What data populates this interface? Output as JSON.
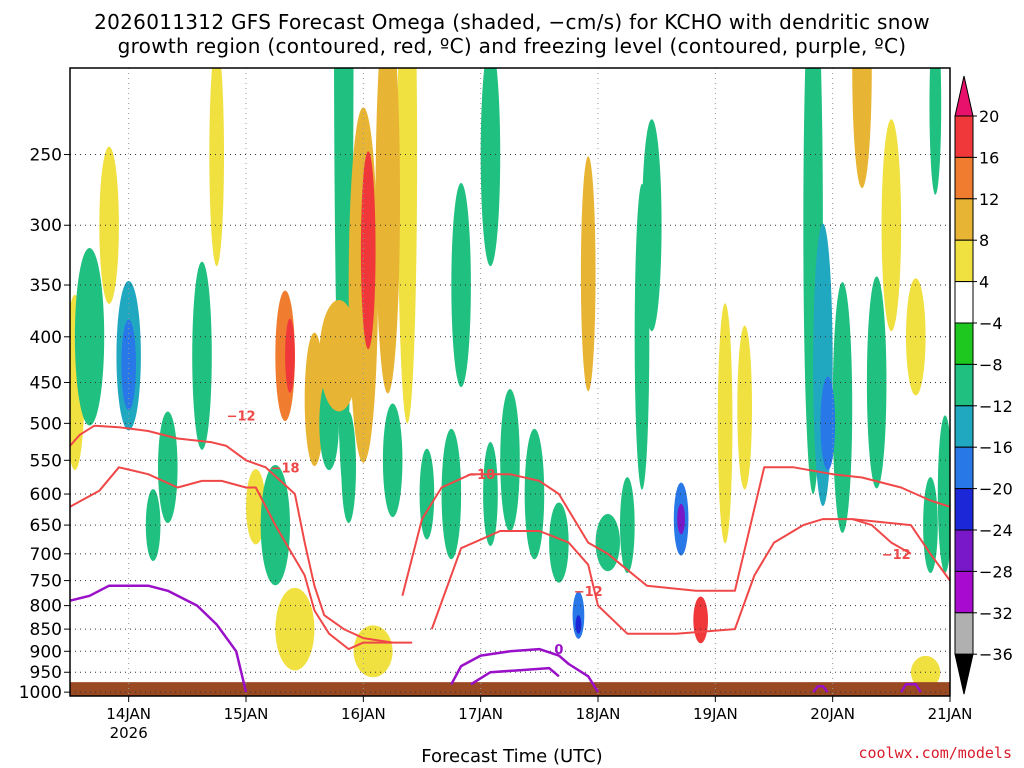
{
  "header": {
    "title_line1": "2026011312 GFS Forecast Omega (shaded, −cm/s) for KCHO with dendritic snow",
    "title_line2": "growth region (contoured, red, ºC) and freezing level (contoured, purple, ºC)"
  },
  "footer": {
    "xlabel": "Forecast Time (UTC)",
    "credit": "coolwx.com/models"
  },
  "chart_data": {
    "type": "heatmap",
    "x_ticks": [
      {
        "label": "14JAN",
        "sub": "2026",
        "hour": 12
      },
      {
        "label": "15JAN",
        "sub": "",
        "hour": 36
      },
      {
        "label": "16JAN",
        "sub": "",
        "hour": 60
      },
      {
        "label": "17JAN",
        "sub": "",
        "hour": 84
      },
      {
        "label": "18JAN",
        "sub": "",
        "hour": 108
      },
      {
        "label": "19JAN",
        "sub": "",
        "hour": 132
      },
      {
        "label": "20JAN",
        "sub": "",
        "hour": 156
      },
      {
        "label": "21JAN",
        "sub": "",
        "hour": 180
      }
    ],
    "xlim_hours": [
      0,
      180
    ],
    "y_ticks": [
      250,
      300,
      350,
      400,
      450,
      500,
      550,
      600,
      650,
      700,
      750,
      800,
      850,
      900,
      950,
      1000
    ],
    "ylim_hpa": [
      200,
      1010
    ],
    "grid": true,
    "colorbar": {
      "labels": [
        "20",
        "16",
        "12",
        "8",
        "4",
        "−4",
        "−8",
        "−12",
        "−16",
        "−20",
        "−24",
        "−28",
        "−32",
        "−36"
      ],
      "colors": [
        "#e8126c",
        "#f0383a",
        "#f07c30",
        "#e8b433",
        "#f0e040",
        "#ffffff",
        "#1ec81e",
        "#20c080",
        "#20a8c0",
        "#2878e8",
        "#1c28d8",
        "#7818c8",
        "#a80ad0",
        "#b0b0b0",
        "#000000"
      ]
    },
    "omega_features": [
      {
        "t": 4,
        "p": 400,
        "dt": 3,
        "dp": 90,
        "v": -10
      },
      {
        "t": 12,
        "p": 420,
        "dt": 2.5,
        "dp": 80,
        "v": -14
      },
      {
        "t": 12,
        "p": 430,
        "dt": 1.5,
        "dp": 50,
        "v": -18
      },
      {
        "t": 8,
        "p": 300,
        "dt": 2,
        "dp": 60,
        "v": 6
      },
      {
        "t": 1,
        "p": 450,
        "dt": 2,
        "dp": 100,
        "v": 6
      },
      {
        "t": 17,
        "p": 650,
        "dt": 1.5,
        "dp": 60,
        "v": -8
      },
      {
        "t": 20,
        "p": 560,
        "dt": 2,
        "dp": 80,
        "v": -8
      },
      {
        "t": 27,
        "p": 420,
        "dt": 2,
        "dp": 100,
        "v": -8
      },
      {
        "t": 30,
        "p": 250,
        "dt": 1.5,
        "dp": 70,
        "v": 5
      },
      {
        "t": 38,
        "p": 620,
        "dt": 2,
        "dp": 60,
        "v": 5
      },
      {
        "t": 42,
        "p": 650,
        "dt": 3,
        "dp": 100,
        "v": -10
      },
      {
        "t": 44,
        "p": 420,
        "dt": 2,
        "dp": 70,
        "v": 12
      },
      {
        "t": 45,
        "p": 420,
        "dt": 1,
        "dp": 40,
        "v": 17
      },
      {
        "t": 46,
        "p": 850,
        "dt": 4,
        "dp": 90,
        "v": 6
      },
      {
        "t": 50,
        "p": 470,
        "dt": 2,
        "dp": 80,
        "v": 8
      },
      {
        "t": 53,
        "p": 500,
        "dt": 2,
        "dp": 60,
        "v": -8
      },
      {
        "t": 55,
        "p": 420,
        "dt": 4,
        "dp": 60,
        "v": 9
      },
      {
        "t": 56,
        "p": 180,
        "dt": 2,
        "dp": 150,
        "v": -8
      },
      {
        "t": 60,
        "p": 350,
        "dt": 3,
        "dp": 150,
        "v": 10
      },
      {
        "t": 61,
        "p": 320,
        "dt": 1.5,
        "dp": 80,
        "v": 17
      },
      {
        "t": 57,
        "p": 560,
        "dt": 1.5,
        "dp": 80,
        "v": -8
      },
      {
        "t": 62,
        "p": 900,
        "dt": 4,
        "dp": 60,
        "v": 6
      },
      {
        "t": 65,
        "p": 280,
        "dt": 2.5,
        "dp": 130,
        "v": 9
      },
      {
        "t": 66,
        "p": 550,
        "dt": 2,
        "dp": 80,
        "v": -8
      },
      {
        "t": 69,
        "p": 250,
        "dt": 2,
        "dp": 150,
        "v": 7
      },
      {
        "t": 73,
        "p": 600,
        "dt": 1.5,
        "dp": 70,
        "v": -9
      },
      {
        "t": 78,
        "p": 600,
        "dt": 2,
        "dp": 100,
        "v": -8
      },
      {
        "t": 80,
        "p": 350,
        "dt": 2,
        "dp": 90,
        "v": -8
      },
      {
        "t": 86,
        "p": 250,
        "dt": 2,
        "dp": 70,
        "v": -10
      },
      {
        "t": 86,
        "p": 600,
        "dt": 1.5,
        "dp": 80,
        "v": -8
      },
      {
        "t": 90,
        "p": 550,
        "dt": 2,
        "dp": 100,
        "v": -9
      },
      {
        "t": 95,
        "p": 600,
        "dt": 2,
        "dp": 100,
        "v": -9
      },
      {
        "t": 100,
        "p": 680,
        "dt": 2,
        "dp": 70,
        "v": -10
      },
      {
        "t": 104,
        "p": 820,
        "dt": 1.2,
        "dp": 50,
        "v": -16
      },
      {
        "t": 104,
        "p": 840,
        "dt": 0.6,
        "dp": 20,
        "v": -22
      },
      {
        "t": 106,
        "p": 340,
        "dt": 1.5,
        "dp": 100,
        "v": 10
      },
      {
        "t": 110,
        "p": 680,
        "dt": 2.5,
        "dp": 50,
        "v": -10
      },
      {
        "t": 114,
        "p": 650,
        "dt": 1.5,
        "dp": 80,
        "v": -10
      },
      {
        "t": 117,
        "p": 400,
        "dt": 1.5,
        "dp": 150,
        "v": -8
      },
      {
        "t": 119,
        "p": 300,
        "dt": 2,
        "dp": 80,
        "v": -8
      },
      {
        "t": 125,
        "p": 640,
        "dt": 1.5,
        "dp": 60,
        "v": -16
      },
      {
        "t": 125,
        "p": 640,
        "dt": 0.8,
        "dp": 25,
        "v": -24
      },
      {
        "t": 129,
        "p": 830,
        "dt": 1.5,
        "dp": 50,
        "v": 16
      },
      {
        "t": 134,
        "p": 500,
        "dt": 1.5,
        "dp": 150,
        "v": 6
      },
      {
        "t": 138,
        "p": 480,
        "dt": 1.5,
        "dp": 100,
        "v": 7
      },
      {
        "t": 152,
        "p": 300,
        "dt": 2,
        "dp": 180,
        "v": -8
      },
      {
        "t": 154,
        "p": 430,
        "dt": 2,
        "dp": 150,
        "v": -12
      },
      {
        "t": 155,
        "p": 500,
        "dt": 1.5,
        "dp": 60,
        "v": -16
      },
      {
        "t": 158,
        "p": 480,
        "dt": 2,
        "dp": 150,
        "v": -9
      },
      {
        "t": 162,
        "p": 200,
        "dt": 2,
        "dp": 60,
        "v": 8
      },
      {
        "t": 165,
        "p": 450,
        "dt": 2,
        "dp": 120,
        "v": -9
      },
      {
        "t": 168,
        "p": 300,
        "dt": 2,
        "dp": 80,
        "v": 6
      },
      {
        "t": 173,
        "p": 400,
        "dt": 2,
        "dp": 60,
        "v": 7
      },
      {
        "t": 176,
        "p": 650,
        "dt": 1.5,
        "dp": 80,
        "v": -9
      },
      {
        "t": 177,
        "p": 220,
        "dt": 1.2,
        "dp": 50,
        "v": -10
      },
      {
        "t": 179,
        "p": 600,
        "dt": 1.5,
        "dp": 120,
        "v": -8
      },
      {
        "t": 175,
        "p": 950,
        "dt": 3,
        "dp": 40,
        "v": 6
      }
    ],
    "red_contours": [
      {
        "label": "−12",
        "label_at": [
          35,
          490
        ],
        "points": [
          [
            0,
            620
          ],
          [
            6,
            595
          ],
          [
            10,
            560
          ],
          [
            16,
            570
          ],
          [
            22,
            590
          ],
          [
            27,
            580
          ],
          [
            31,
            580
          ],
          [
            36,
            590
          ],
          [
            38,
            590
          ],
          [
            42,
            650
          ],
          [
            48,
            740
          ],
          [
            50,
            810
          ],
          [
            53,
            860
          ],
          [
            57,
            895
          ],
          [
            60,
            880
          ],
          [
            64,
            880
          ],
          [
            70,
            880
          ]
        ]
      },
      {
        "label": "−18",
        "label_at": [
          44,
          560
        ],
        "points": [
          [
            0,
            530
          ],
          [
            2,
            515
          ],
          [
            5,
            503
          ],
          [
            10,
            505
          ],
          [
            16,
            510
          ],
          [
            22,
            520
          ],
          [
            29,
            525
          ],
          [
            32,
            530
          ],
          [
            36,
            550
          ],
          [
            40,
            560
          ],
          [
            46,
            600
          ],
          [
            48,
            680
          ],
          [
            50,
            760
          ],
          [
            52,
            820
          ],
          [
            56,
            850
          ],
          [
            60,
            870
          ],
          [
            66,
            880
          ]
        ]
      },
      {
        "label": "−18",
        "label_at": [
          84,
          570
        ],
        "points": [
          [
            68,
            780
          ],
          [
            72,
            640
          ],
          [
            76,
            590
          ],
          [
            82,
            570
          ],
          [
            90,
            570
          ],
          [
            96,
            580
          ],
          [
            100,
            600
          ],
          [
            106,
            680
          ],
          [
            110,
            700
          ],
          [
            118,
            760
          ],
          [
            128,
            770
          ],
          [
            136,
            770
          ],
          [
            142,
            560
          ],
          [
            148,
            560
          ],
          [
            156,
            570
          ],
          [
            162,
            575
          ],
          [
            170,
            590
          ],
          [
            176,
            610
          ],
          [
            180,
            620
          ]
        ]
      },
      {
        "label": "−12",
        "label_at": [
          106,
          770
        ],
        "points": [
          [
            74,
            850
          ],
          [
            80,
            690
          ],
          [
            88,
            660
          ],
          [
            96,
            660
          ],
          [
            102,
            680
          ],
          [
            106,
            720
          ],
          [
            108,
            800
          ],
          [
            114,
            860
          ],
          [
            124,
            860
          ],
          [
            136,
            850
          ],
          [
            140,
            740
          ],
          [
            144,
            680
          ],
          [
            150,
            650
          ],
          [
            154,
            640
          ],
          [
            160,
            640
          ],
          [
            166,
            645
          ],
          [
            172,
            650
          ],
          [
            176,
            700
          ],
          [
            180,
            750
          ]
        ]
      },
      {
        "label": "−12",
        "label_at": [
          169,
          700
        ],
        "points": [
          [
            160,
            640
          ],
          [
            164,
            650
          ],
          [
            168,
            680
          ],
          [
            172,
            700
          ]
        ]
      }
    ],
    "purple_contours": [
      {
        "label": "",
        "label_at": null,
        "points": [
          [
            0,
            790
          ],
          [
            4,
            780
          ],
          [
            8,
            760
          ],
          [
            12,
            760
          ],
          [
            16,
            760
          ],
          [
            20,
            770
          ],
          [
            26,
            800
          ],
          [
            30,
            840
          ],
          [
            34,
            900
          ],
          [
            36,
            1000
          ]
        ]
      },
      {
        "label": "0",
        "label_at": [
          100,
          895
        ],
        "points": [
          [
            78,
            980
          ],
          [
            80,
            935
          ],
          [
            84,
            910
          ],
          [
            90,
            900
          ],
          [
            96,
            895
          ],
          [
            100,
            910
          ],
          [
            102,
            930
          ],
          [
            106,
            960
          ],
          [
            108,
            1000
          ]
        ]
      },
      {
        "label": "",
        "label_at": null,
        "points": [
          [
            82,
            980
          ],
          [
            86,
            950
          ],
          [
            92,
            945
          ],
          [
            98,
            940
          ],
          [
            100,
            960
          ]
        ]
      },
      {
        "label": "",
        "label_at": null,
        "points": [
          [
            152,
            1000
          ],
          [
            153,
            985
          ],
          [
            154,
            985
          ],
          [
            155,
            1000
          ]
        ]
      },
      {
        "label": "",
        "label_at": null,
        "points": [
          [
            170,
            1000
          ],
          [
            171,
            980
          ],
          [
            173,
            980
          ],
          [
            174,
            1000
          ]
        ]
      }
    ],
    "ground_color": "#9a4a22"
  }
}
